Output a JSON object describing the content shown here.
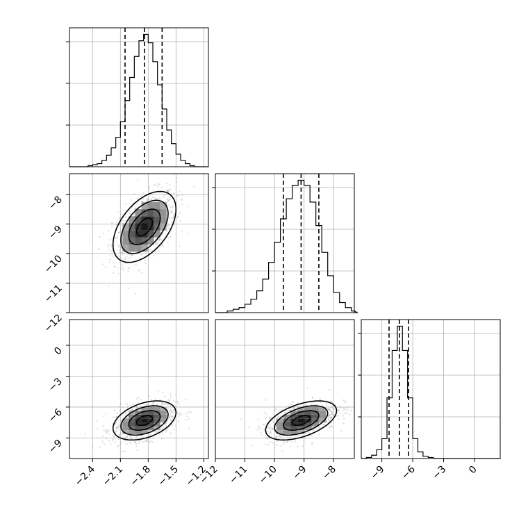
{
  "chart_data": {
    "type": "corner",
    "parameters": [
      {
        "index": 0,
        "range": [
          -2.65,
          -1.15
        ],
        "ticks": [
          -2.4,
          -2.1,
          -1.8,
          -1.5,
          -1.2
        ],
        "tick_labels": [
          "−2.4",
          "−2.1",
          "−1.8",
          "−1.5",
          "−1.2"
        ],
        "quantiles": [
          -2.05,
          -1.84,
          -1.65
        ]
      },
      {
        "index": 1,
        "range": [
          -12,
          -7.3
        ],
        "ticks": [
          -12,
          -11,
          -10,
          -9,
          -8
        ],
        "tick_labels": [
          "−12",
          "−11",
          "−10",
          "−9",
          "−8"
        ],
        "quantiles": [
          -9.7,
          -9.1,
          -8.5
        ]
      },
      {
        "index": 2,
        "range": [
          -11,
          2.5
        ],
        "ticks": [
          -9,
          -6,
          -3,
          0
        ],
        "tick_labels": [
          "−9",
          "−6",
          "−3",
          "0"
        ],
        "y_ticks": [
          -9,
          -6,
          -3,
          0
        ],
        "y_tick_labels": [
          "−9",
          "−6",
          "−3",
          "0"
        ],
        "quantiles": [
          -8.3,
          -7.3,
          -6.4
        ]
      }
    ],
    "histograms": [
      {
        "param": 0,
        "bin_edges": [
          -2.65,
          -2.6,
          -2.55,
          -2.5,
          -2.45,
          -2.4,
          -2.35,
          -2.3,
          -2.25,
          -2.2,
          -2.15,
          -2.1,
          -2.05,
          -2.0,
          -1.95,
          -1.9,
          -1.85,
          -1.8,
          -1.75,
          -1.7,
          -1.65,
          -1.6,
          -1.55,
          -1.5,
          -1.45,
          -1.4,
          -1.35,
          -1.3,
          -1.25,
          -1.2,
          -1.15
        ],
        "counts": [
          0,
          0,
          0,
          0,
          1,
          2,
          3,
          6,
          11,
          18,
          28,
          43,
          63,
          85,
          105,
          120,
          126,
          118,
          100,
          78,
          55,
          35,
          22,
          12,
          6,
          3,
          1,
          0,
          0,
          0
        ]
      },
      {
        "param": 1,
        "bin_edges": [
          -12.0,
          -11.8,
          -11.6,
          -11.4,
          -11.2,
          -11.0,
          -10.8,
          -10.6,
          -10.4,
          -10.2,
          -10.0,
          -9.8,
          -9.6,
          -9.4,
          -9.2,
          -9.0,
          -8.8,
          -8.6,
          -8.4,
          -8.2,
          -8.0,
          -7.8,
          -7.6,
          -7.4,
          -7.2,
          -7.0
        ],
        "counts": [
          0,
          0,
          1,
          2,
          3,
          5,
          8,
          13,
          20,
          30,
          42,
          56,
          68,
          76,
          79,
          76,
          66,
          52,
          36,
          22,
          12,
          6,
          3,
          1,
          0
        ]
      },
      {
        "param": 2,
        "bin_edges": [
          -11.0,
          -10.5,
          -10.0,
          -9.5,
          -9.0,
          -8.5,
          -8.0,
          -7.5,
          -7.0,
          -6.5,
          -6.0,
          -5.5,
          -5.0,
          -4.5,
          -4.0,
          -3.5,
          -3.0,
          -2.5,
          -2.0,
          -1.5,
          -1.0,
          -0.5,
          0.0,
          0.5,
          1.0,
          1.5,
          2.0,
          2.5
        ],
        "counts": [
          0,
          1,
          3,
          8,
          18,
          55,
          98,
          120,
          98,
          55,
          18,
          6,
          2,
          1,
          0,
          0,
          0,
          0,
          0,
          0,
          0,
          0,
          0,
          0,
          0,
          0,
          0
        ]
      }
    ],
    "pairs": [
      {
        "x_param": 0,
        "y_param": 1,
        "center": [
          -1.84,
          -9.1
        ],
        "sigma": [
          0.17,
          0.6
        ],
        "rho": 0.5
      },
      {
        "x_param": 0,
        "y_param": 2,
        "center": [
          -1.84,
          -7.3
        ],
        "sigma": [
          0.17,
          0.95
        ],
        "rho": 0.4
      },
      {
        "x_param": 1,
        "y_param": 2,
        "center": [
          -9.1,
          -7.3
        ],
        "sigma": [
          0.6,
          0.95
        ],
        "rho": 0.5
      }
    ],
    "contour_levels_sigma": [
      0.5,
      1.0,
      1.5,
      2.0
    ],
    "grid": true
  }
}
